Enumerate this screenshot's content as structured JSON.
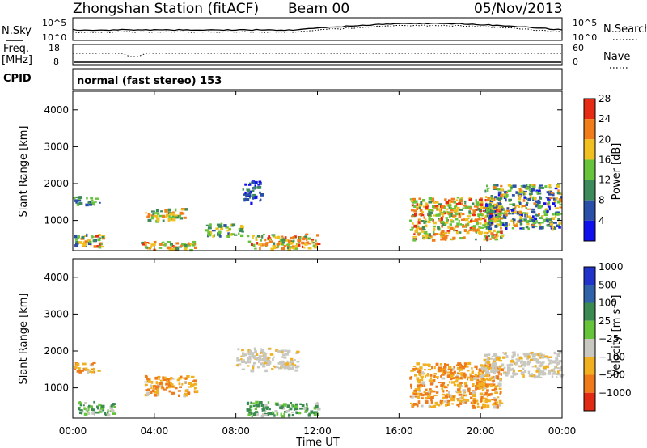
{
  "header": {
    "station": "Zhongshan Station (fitACF)",
    "beam": "Beam 00",
    "date": "05/Nov/2013"
  },
  "noise_panel": {
    "left_label": "N.Sky",
    "left_ticks": [
      "10^5",
      "10^0"
    ],
    "right_label": "N.Search",
    "right_ticks": [
      "10^5",
      "10^0"
    ]
  },
  "freq_panel": {
    "left_label_1": "Freq.",
    "left_label_2": "[MHz]",
    "left_ticks": [
      "18",
      "8"
    ],
    "right_label": "Nave",
    "right_ticks": [
      "60",
      "0"
    ]
  },
  "cpid": {
    "label": "CPID",
    "mode": "normal (fast stereo) 153"
  },
  "axis": {
    "ylabel": "Slant Range [km]",
    "xlabel": "Time UT",
    "x_ticks": [
      "00:00",
      "04:00",
      "08:00",
      "12:00",
      "16:00",
      "20:00",
      "00:00"
    ],
    "y_ticks": [
      "1000",
      "2000",
      "3000",
      "4000"
    ]
  },
  "power_scale": {
    "label": "Power [dB]",
    "ticks": [
      "4",
      "8",
      "12",
      "16",
      "20",
      "24",
      "28"
    ],
    "colors": [
      "#1010ee",
      "#2a4fa8",
      "#3d8a5a",
      "#66c33a",
      "#f0c020",
      "#f07d1a",
      "#e62a14"
    ]
  },
  "velocity_scale": {
    "label": "Velocity [m s⁻¹]",
    "ticks": [
      "1000",
      "500",
      "100",
      "25",
      "−25",
      "−100",
      "−500",
      "−1000"
    ],
    "colors": [
      "#2233cc",
      "#2f62a8",
      "#3a8a52",
      "#66c43a",
      "#c8c8c0",
      "#f0b020",
      "#ef7a1a",
      "#e02a14"
    ]
  },
  "chart_data": {
    "type": "heatmap",
    "x_range_hours": [
      0,
      24
    ],
    "y_range_km": [
      180,
      4500
    ],
    "power_echo_regions": [
      {
        "t": [
          0.0,
          1.3
        ],
        "r": [
          1450,
          1700
        ],
        "level": "8-16"
      },
      {
        "t": [
          0.0,
          1.5
        ],
        "r": [
          300,
          650
        ],
        "level": "8-28"
      },
      {
        "t": [
          3.5,
          5.5
        ],
        "r": [
          1000,
          1350
        ],
        "level": "12-24"
      },
      {
        "t": [
          3.3,
          6.0
        ],
        "r": [
          220,
          450
        ],
        "level": "12-28"
      },
      {
        "t": [
          6.5,
          8.3
        ],
        "r": [
          600,
          950
        ],
        "level": "8-20"
      },
      {
        "t": [
          8.3,
          9.2
        ],
        "r": [
          1500,
          2100
        ],
        "level": "4-12"
      },
      {
        "t": [
          8.5,
          12.0
        ],
        "r": [
          250,
          650
        ],
        "level": "12-28"
      },
      {
        "t": [
          16.5,
          21.0
        ],
        "r": [
          500,
          1650
        ],
        "level": "12-28"
      },
      {
        "t": [
          20.2,
          23.9
        ],
        "r": [
          800,
          2000
        ],
        "level": "4-24"
      }
    ],
    "velocity_echo_regions": [
      {
        "t": [
          0.0,
          1.3
        ],
        "r": [
          1450,
          1700
        ],
        "sign": "negative"
      },
      {
        "t": [
          0.2,
          2.0
        ],
        "r": [
          300,
          650
        ],
        "sign": "positive"
      },
      {
        "t": [
          3.5,
          6.0
        ],
        "r": [
          800,
          1350
        ],
        "sign": "negative"
      },
      {
        "t": [
          8.0,
          11.0
        ],
        "r": [
          1500,
          2100
        ],
        "sign": "near zero"
      },
      {
        "t": [
          8.5,
          12.0
        ],
        "r": [
          250,
          650
        ],
        "sign": "positive"
      },
      {
        "t": [
          16.5,
          21.0
        ],
        "r": [
          500,
          1700
        ],
        "sign": "negative"
      },
      {
        "t": [
          20.0,
          23.9
        ],
        "r": [
          1300,
          2000
        ],
        "sign": "near zero"
      }
    ]
  }
}
